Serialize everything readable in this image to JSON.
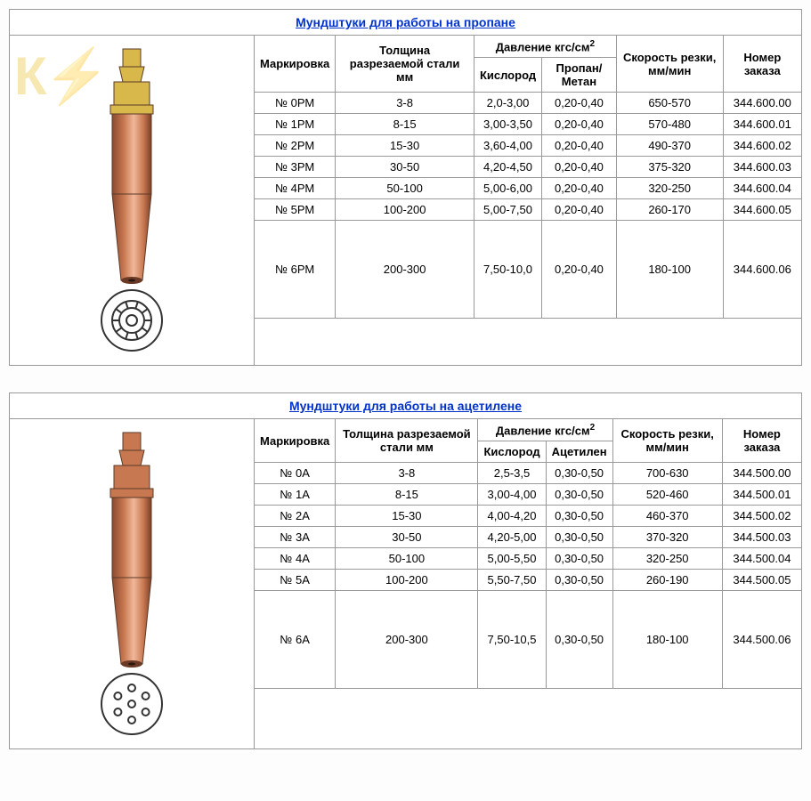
{
  "tables": [
    {
      "title": "Мундштуки для работы на пропане",
      "gas_label": "Пропан/Метан",
      "nozzle_variant": "propane",
      "headers": {
        "marking": "Маркировка",
        "thickness": "Толщина разрезаемой стали мм",
        "pressure": "Давление кгс/см",
        "pressure_unit_sup": "2",
        "oxygen": "Кислород",
        "speed": "Скорость резки, мм/мин",
        "order": "Номер заказа"
      },
      "rows": [
        {
          "mark": "№ 0РМ",
          "thick": "3-8",
          "oxy": "2,0-3,00",
          "gas": "0,20-0,40",
          "speed": "650-570",
          "order": "344.600.00"
        },
        {
          "mark": "№ 1РМ",
          "thick": "8-15",
          "oxy": "3,00-3,50",
          "gas": "0,20-0,40",
          "speed": "570-480",
          "order": "344.600.01"
        },
        {
          "mark": "№ 2РМ",
          "thick": "15-30",
          "oxy": "3,60-4,00",
          "gas": "0,20-0,40",
          "speed": "490-370",
          "order": "344.600.02"
        },
        {
          "mark": "№ 3РМ",
          "thick": "30-50",
          "oxy": "4,20-4,50",
          "gas": "0,20-0,40",
          "speed": "375-320",
          "order": "344.600.03"
        },
        {
          "mark": "№ 4РМ",
          "thick": "50-100",
          "oxy": "5,00-6,00",
          "gas": "0,20-0,40",
          "speed": "320-250",
          "order": "344.600.04"
        },
        {
          "mark": "№ 5РМ",
          "thick": "100-200",
          "oxy": "5,00-7,50",
          "gas": "0,20-0,40",
          "speed": "260-170",
          "order": "344.600.05"
        },
        {
          "mark": "№ 6РМ",
          "thick": "200-300",
          "oxy": "7,50-10,0",
          "gas": "0,20-0,40",
          "speed": "180-100",
          "order": "344.600.06"
        }
      ],
      "colors": {
        "copper": "#c87850",
        "brass": "#d8b84a",
        "outline": "#5a3a28"
      }
    },
    {
      "title": "Мундштуки для работы на ацетилене",
      "gas_label": "Ацетилен",
      "nozzle_variant": "acetylene",
      "headers": {
        "marking": "Маркировка",
        "thickness": "Толщина разрезаемой стали мм",
        "pressure": "Давление кгс/см",
        "pressure_unit_sup": "2",
        "oxygen": "Кислород",
        "speed": "Скорость резки, мм/мин",
        "order": "Номер заказа"
      },
      "rows": [
        {
          "mark": "№ 0А",
          "thick": "3-8",
          "oxy": "2,5-3,5",
          "gas": "0,30-0,50",
          "speed": "700-630",
          "order": "344.500.00"
        },
        {
          "mark": "№ 1А",
          "thick": "8-15",
          "oxy": "3,00-4,00",
          "gas": "0,30-0,50",
          "speed": "520-460",
          "order": "344.500.01"
        },
        {
          "mark": "№ 2А",
          "thick": "15-30",
          "oxy": "4,00-4,20",
          "gas": "0,30-0,50",
          "speed": "460-370",
          "order": "344.500.02"
        },
        {
          "mark": "№ 3А",
          "thick": "30-50",
          "oxy": "4,20-5,00",
          "gas": "0,30-0,50",
          "speed": "370-320",
          "order": "344.500.03"
        },
        {
          "mark": "№ 4А",
          "thick": "50-100",
          "oxy": "5,00-5,50",
          "gas": "0,30-0,50",
          "speed": "320-250",
          "order": "344.500.04"
        },
        {
          "mark": "№ 5А",
          "thick": "100-200",
          "oxy": "5,50-7,50",
          "gas": "0,30-0,50",
          "speed": "260-190",
          "order": "344.500.05"
        },
        {
          "mark": "№ 6А",
          "thick": "200-300",
          "oxy": "7,50-10,5",
          "gas": "0,30-0,50",
          "speed": "180-100",
          "order": "344.500.06"
        }
      ],
      "colors": {
        "copper": "#c87850",
        "brass": "#d8b84a",
        "outline": "#5a3a28"
      }
    }
  ]
}
